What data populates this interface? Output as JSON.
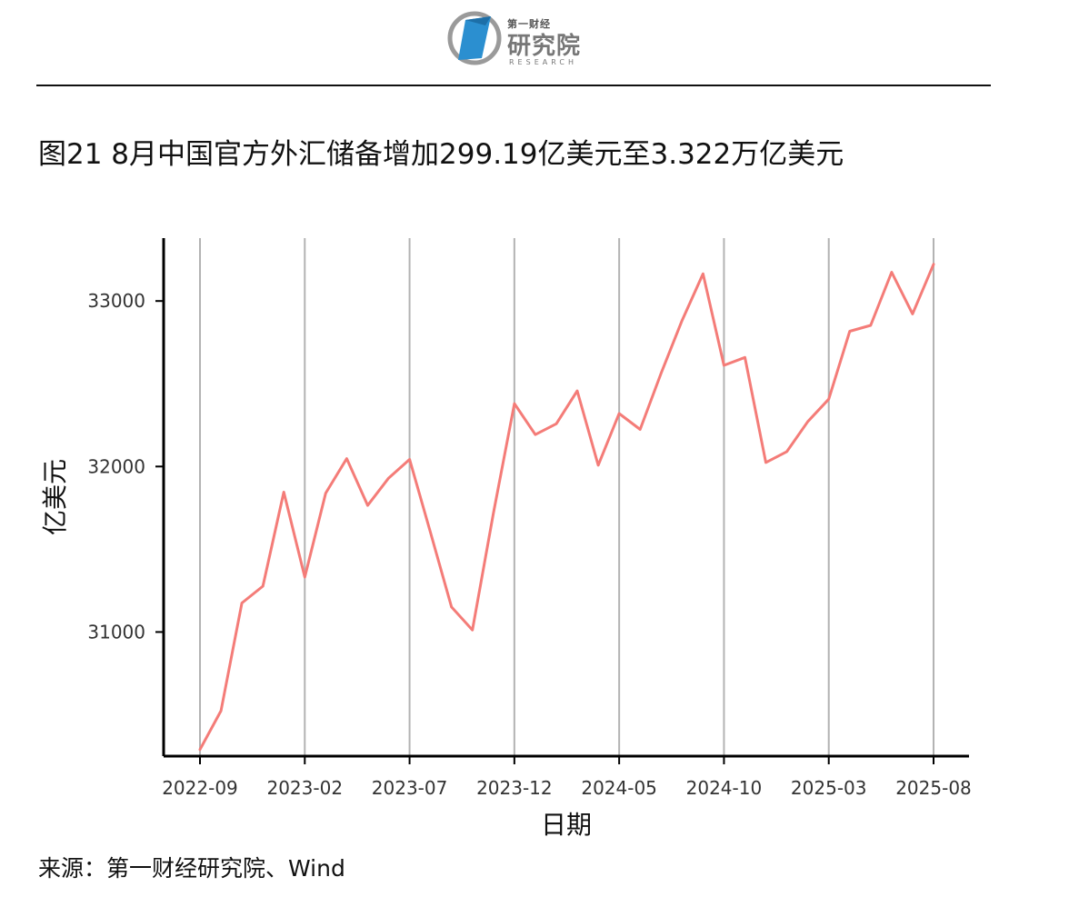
{
  "header": {
    "logo_small": "第一财经",
    "logo_main": "研究院",
    "logo_sub": "RESEARCH"
  },
  "footer": {
    "source": "来源：第一财经研究院、Wind"
  },
  "colors": {
    "line": "#F47C78",
    "grid": "#B3B3B3",
    "axis": "#000000"
  },
  "chart_data": {
    "type": "line",
    "title": "图21 8月中国官方外汇储备增加299.19亿美元至3.322万亿美元",
    "xlabel": "日期",
    "ylabel": "亿美元",
    "x_tick_labels": [
      "2022-09",
      "2023-02",
      "2023-07",
      "2023-12",
      "2024-05",
      "2024-10",
      "2025-03",
      "2025-08"
    ],
    "y_ticks": [
      31000,
      32000,
      33000
    ],
    "ylim": [
      30250,
      33380
    ],
    "grid": "vertical",
    "series": [
      {
        "x": [
          "2022-09",
          "2022-10",
          "2022-11",
          "2022-12",
          "2023-01",
          "2023-02",
          "2023-03",
          "2023-04",
          "2023-05",
          "2023-06",
          "2023-07",
          "2023-08",
          "2023-09",
          "2023-10",
          "2023-11",
          "2023-12",
          "2024-01",
          "2024-02",
          "2024-03",
          "2024-04",
          "2024-05",
          "2024-06",
          "2024-07",
          "2024-08",
          "2024-09",
          "2024-10",
          "2024-11",
          "2024-12",
          "2025-01",
          "2025-02",
          "2025-03",
          "2025-04",
          "2025-05",
          "2025-06",
          "2025-07",
          "2025-08"
        ],
        "values": [
          30290,
          30524,
          31175,
          31277,
          31845,
          31332,
          31839,
          32048,
          31765,
          31930,
          32043,
          31601,
          31151,
          31012,
          31718,
          32380,
          32193,
          32258,
          32457,
          32008,
          32320,
          32224,
          32564,
          32882,
          33164,
          32611,
          32659,
          32024,
          32090,
          32272,
          32407,
          32817,
          32853,
          33174,
          32922,
          33222
        ]
      }
    ]
  }
}
